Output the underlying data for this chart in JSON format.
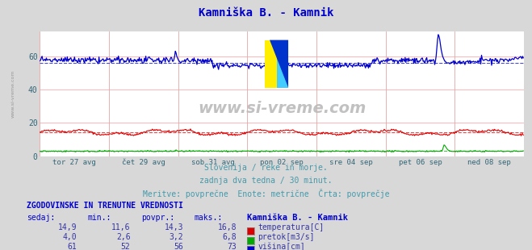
{
  "title": "Kamniška B. - Kamnik",
  "bg_color": "#d8d8d8",
  "plot_bg_color": "#ffffff",
  "grid_color": "#ffaaaa",
  "grid_vcolor": "#ddaaaa",
  "subtitle_lines": [
    "Slovenija / reke in morje.",
    "zadnja dva tedna / 30 minut.",
    "Meritve: povprečne  Enote: metrične  Črta: povprečje"
  ],
  "xlabel_ticks": [
    "tor 27 avg",
    "čet 29 avg",
    "sob 31 avg",
    "pon 02 sep",
    "sre 04 sep",
    "pet 06 sep",
    "ned 08 sep"
  ],
  "ylabel_ticks": [
    0,
    20,
    40,
    60
  ],
  "ylim": [
    0,
    75
  ],
  "xlim": [
    0,
    672
  ],
  "watermark": "www.si-vreme.com",
  "title_color": "#0000cc",
  "subtitle_color": "#4499aa",
  "table_header": "ZGODOVINSKE IN TRENUTNE VREDNOSTI",
  "table_cols": [
    "sedaj:",
    "min.:",
    "povpr.:",
    "maks.:"
  ],
  "table_rows": [
    [
      "14,9",
      "11,6",
      "14,3",
      "16,8",
      "temperatura[C]",
      "#dd0000"
    ],
    [
      "4,0",
      "2,6",
      "3,2",
      "6,8",
      "pretok[m3/s]",
      "#00aa00"
    ],
    [
      "61",
      "52",
      "56",
      "73",
      "višina[cm]",
      "#0000cc"
    ]
  ],
  "station_label": "Kamniška B. - Kamnik",
  "avg_temp": 14.3,
  "avg_pretok": 3.2,
  "avg_visina": 56,
  "temp_color": "#dd0000",
  "pretok_color": "#00aa00",
  "visina_color": "#0000cc",
  "side_label_color": "#aaaaaa",
  "num_points": 672
}
